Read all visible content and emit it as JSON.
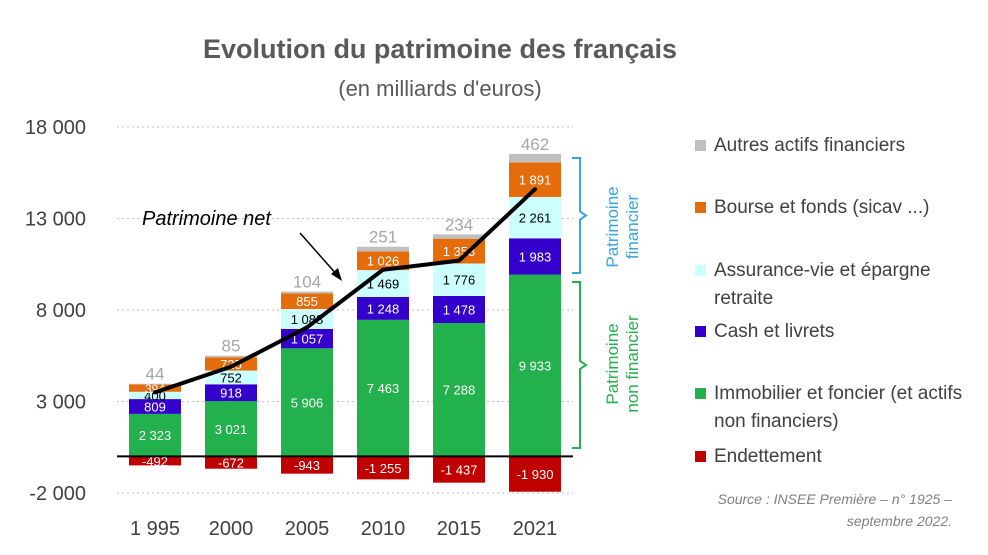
{
  "chart_data": {
    "type": "bar",
    "stacked": true,
    "title": "Evolution du patrimoine des français",
    "subtitle": "(en milliards d'euros)",
    "categories": [
      "1 995",
      "2000",
      "2005",
      "2010",
      "2015",
      "2021"
    ],
    "ylim": [
      -2000,
      18000
    ],
    "yticks": [
      -2000,
      3000,
      8000,
      13000,
      18000
    ],
    "ytick_labels": [
      "-2 000",
      "3 000",
      "8 000",
      "13 000",
      "18 000"
    ],
    "grid": true,
    "series": [
      {
        "key": "endettement",
        "name": "Endettement",
        "color": "#c00000",
        "values": [
          -492,
          -672,
          -943,
          -1255,
          -1437,
          -1930
        ],
        "labels": [
          "-492",
          "-672",
          "-943",
          "-1 255",
          "-1 437",
          "-1 930"
        ]
      },
      {
        "key": "immobilier",
        "name": "Immobilier et foncier (et actifs non financiers)",
        "color": "#22b14c",
        "values": [
          2323,
          3021,
          5906,
          7463,
          7288,
          9933
        ],
        "labels": [
          "2 323",
          "3 021",
          "5 906",
          "7 463",
          "7 288",
          "9 933"
        ]
      },
      {
        "key": "cash",
        "name": "Cash et livrets",
        "color": "#3300cc",
        "values": [
          809,
          918,
          1057,
          1248,
          1478,
          1983
        ],
        "labels": [
          "809",
          "918",
          "1 057",
          "1 248",
          "1 478",
          "1 983"
        ]
      },
      {
        "key": "assurance",
        "name": "Assurance-vie et épargne retraite",
        "color": "#ccffff",
        "values": [
          400,
          752,
          1088,
          1469,
          1776,
          2261
        ],
        "labels": [
          "400",
          "752",
          "1 088",
          "1 469",
          "1 776",
          "2 261"
        ]
      },
      {
        "key": "bourse",
        "name": "Bourse et fonds (sicav ...)",
        "color": "#e46c0a",
        "values": [
          394,
          725,
          855,
          1026,
          1353,
          1891
        ],
        "labels": [
          "394",
          "725",
          "855",
          "1 026",
          "1 353",
          "1 891"
        ]
      },
      {
        "key": "autres",
        "name": "Autres actifs financiers",
        "color": "#bfbfbf",
        "values": [
          44,
          85,
          104,
          251,
          234,
          462
        ],
        "labels": [
          "44",
          "85",
          "104",
          "251",
          "234",
          "462"
        ]
      }
    ],
    "net_line": {
      "name": "Patrimoine net",
      "values": [
        3500,
        4900,
        7050,
        10200,
        10700,
        14600
      ]
    },
    "annotation": "Patrimoine net",
    "braces": [
      {
        "label_lines": [
          "Patrimoine",
          "financier"
        ],
        "color": "#33a7e0"
      },
      {
        "label_lines": [
          "Patrimoine",
          "non financier"
        ],
        "color": "#22b14c"
      }
    ]
  },
  "legend": [
    {
      "label": "Autres actifs financiers",
      "color": "#bfbfbf"
    },
    {
      "label": "Bourse et fonds (sicav ...)",
      "color": "#e46c0a"
    },
    {
      "label": "Assurance-vie et épargne retraite",
      "color": "#ccffff"
    },
    {
      "label": "Cash et livrets",
      "color": "#3300cc"
    },
    {
      "label": "Immobilier et foncier (et actifs non financiers)",
      "color": "#22b14c"
    },
    {
      "label": "Endettement",
      "color": "#c00000"
    }
  ],
  "source": {
    "line1": "Source : INSEE Première – n° 1925 –",
    "line2": "septembre 2022."
  }
}
